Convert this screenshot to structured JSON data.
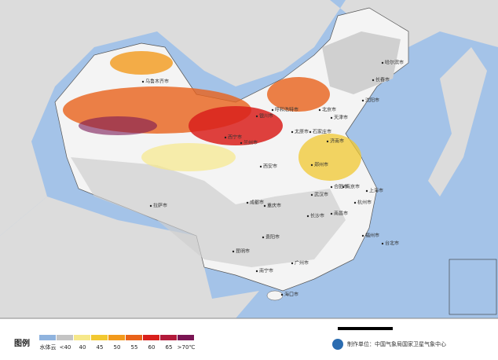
{
  "legend": {
    "title": "图例",
    "items": [
      {
        "label": "水体云",
        "color": "#8fb3de"
      },
      {
        "label": "<40",
        "color": "#c4c4c4"
      },
      {
        "label": "40",
        "color": "#f6e88a"
      },
      {
        "label": "45",
        "color": "#f2c830"
      },
      {
        "label": "50",
        "color": "#f29a1c"
      },
      {
        "label": "55",
        "color": "#e9621a"
      },
      {
        "label": "60",
        "color": "#d9201c"
      },
      {
        "label": "65",
        "color": "#b21a3a"
      },
      {
        "label": ">70℃",
        "color": "#7a1553"
      }
    ]
  },
  "credit": "制作单位：中国气象局国家卫星气象中心",
  "cities": [
    "乌鲁木齐市",
    "拉萨市",
    "西宁市",
    "兰州市",
    "银川市",
    "呼和浩特市",
    "北京市",
    "天津市",
    "沈阳市",
    "长春市",
    "哈尔滨市",
    "石家庄市",
    "太原市",
    "济南市",
    "郑州市",
    "西安市",
    "南京市",
    "上海市",
    "合肥市",
    "武汉市",
    "成都市",
    "重庆市",
    "长沙市",
    "南昌市",
    "杭州市",
    "福州市",
    "贵阳市",
    "昆明市",
    "南宁市",
    "广州市",
    "海口市",
    "台北市"
  ]
}
